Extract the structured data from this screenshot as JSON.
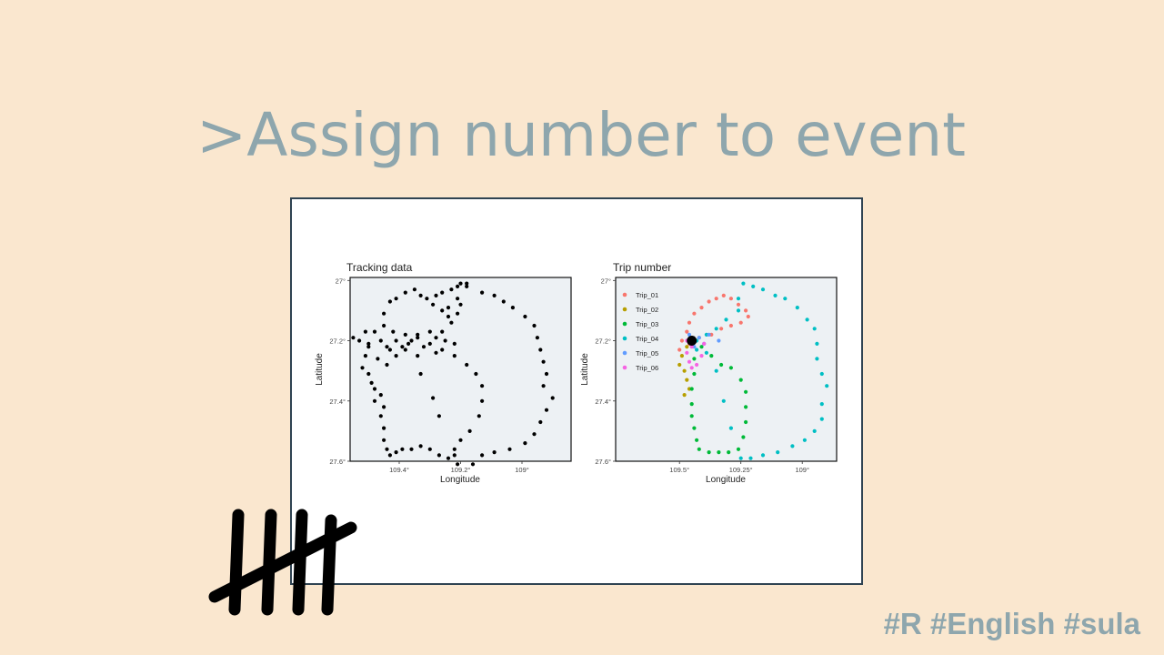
{
  "slide": {
    "title": ">Assign number to event",
    "hashtags": "#R #English #sula"
  },
  "chart_data": [
    {
      "type": "scatter",
      "title": "Tracking data",
      "xlabel": "Longitude",
      "ylabel": "Latitude",
      "x_ticks": [
        "109.4°",
        "109.2°",
        "109°"
      ],
      "y_ticks": [
        "27°",
        "27.2°",
        "27.4°",
        "27.6°"
      ],
      "xlim": [
        109.56,
        108.84
      ],
      "ylim": [
        27.6,
        26.99
      ],
      "grid": false,
      "point_color": "#000000",
      "panel_background": "#edf1f4",
      "series": [
        {
          "points": [
            [
              109.2,
              27.01
            ],
            [
              109.18,
              27.01
            ],
            [
              109.21,
              27.02
            ],
            [
              109.23,
              27.03
            ],
            [
              109.26,
              27.04
            ],
            [
              109.28,
              27.05
            ],
            [
              109.31,
              27.06
            ],
            [
              109.18,
              27.02
            ],
            [
              109.13,
              27.04
            ],
            [
              109.09,
              27.05
            ],
            [
              109.06,
              27.07
            ],
            [
              109.03,
              27.09
            ],
            [
              108.99,
              27.12
            ],
            [
              108.96,
              27.15
            ],
            [
              108.95,
              27.19
            ],
            [
              108.94,
              27.23
            ],
            [
              108.93,
              27.27
            ],
            [
              108.92,
              27.31
            ],
            [
              108.93,
              27.35
            ],
            [
              108.9,
              27.39
            ],
            [
              108.92,
              27.43
            ],
            [
              108.94,
              27.47
            ],
            [
              108.96,
              27.51
            ],
            [
              108.99,
              27.54
            ],
            [
              109.04,
              27.56
            ],
            [
              109.09,
              27.57
            ],
            [
              109.13,
              27.58
            ],
            [
              109.16,
              27.61
            ],
            [
              109.21,
              27.61
            ],
            [
              109.22,
              27.56
            ],
            [
              109.2,
              27.53
            ],
            [
              109.17,
              27.5
            ],
            [
              109.14,
              27.45
            ],
            [
              109.13,
              27.4
            ],
            [
              109.13,
              27.35
            ],
            [
              109.15,
              27.31
            ],
            [
              109.18,
              27.28
            ],
            [
              109.22,
              27.25
            ],
            [
              109.26,
              27.23
            ],
            [
              109.3,
              27.21
            ],
            [
              109.34,
              27.19
            ],
            [
              109.38,
              27.18
            ],
            [
              109.42,
              27.17
            ],
            [
              109.45,
              27.15
            ],
            [
              109.48,
              27.17
            ],
            [
              109.51,
              27.17
            ],
            [
              109.53,
              27.2
            ],
            [
              109.55,
              27.19
            ],
            [
              109.5,
              27.21
            ],
            [
              109.46,
              27.2
            ],
            [
              109.44,
              27.22
            ],
            [
              109.41,
              27.2
            ],
            [
              109.37,
              27.21
            ],
            [
              109.34,
              27.18
            ],
            [
              109.3,
              27.17
            ],
            [
              109.26,
              27.17
            ],
            [
              109.23,
              27.14
            ],
            [
              109.21,
              27.11
            ],
            [
              109.2,
              27.08
            ],
            [
              109.21,
              27.06
            ],
            [
              109.24,
              27.09
            ],
            [
              109.24,
              27.12
            ],
            [
              109.26,
              27.1
            ],
            [
              109.29,
              27.08
            ],
            [
              109.33,
              27.05
            ],
            [
              109.35,
              27.03
            ],
            [
              109.38,
              27.04
            ],
            [
              109.41,
              27.06
            ],
            [
              109.43,
              27.07
            ],
            [
              109.45,
              27.11
            ],
            [
              109.5,
              27.22
            ],
            [
              109.51,
              27.25
            ],
            [
              109.52,
              27.29
            ],
            [
              109.5,
              27.31
            ],
            [
              109.49,
              27.34
            ],
            [
              109.48,
              27.36
            ],
            [
              109.46,
              27.38
            ],
            [
              109.48,
              27.4
            ],
            [
              109.45,
              27.42
            ],
            [
              109.46,
              27.45
            ],
            [
              109.45,
              27.49
            ],
            [
              109.45,
              27.53
            ],
            [
              109.44,
              27.56
            ],
            [
              109.43,
              27.58
            ],
            [
              109.41,
              27.57
            ],
            [
              109.39,
              27.56
            ],
            [
              109.36,
              27.56
            ],
            [
              109.33,
              27.55
            ],
            [
              109.3,
              27.56
            ],
            [
              109.27,
              27.58
            ],
            [
              109.24,
              27.59
            ],
            [
              109.22,
              27.58
            ],
            [
              109.27,
              27.45
            ],
            [
              109.29,
              27.39
            ],
            [
              109.33,
              27.31
            ],
            [
              109.38,
              27.23
            ],
            [
              109.41,
              27.25
            ],
            [
              109.44,
              27.28
            ],
            [
              109.47,
              27.26
            ],
            [
              109.43,
              27.23
            ],
            [
              109.39,
              27.22
            ],
            [
              109.36,
              27.2
            ],
            [
              109.32,
              27.22
            ],
            [
              109.28,
              27.19
            ],
            [
              109.25,
              27.2
            ],
            [
              109.22,
              27.21
            ],
            [
              109.28,
              27.24
            ],
            [
              109.34,
              27.25
            ]
          ]
        }
      ]
    },
    {
      "type": "scatter",
      "title": "Trip number",
      "xlabel": "Longitude",
      "ylabel": "Latitude",
      "x_ticks": [
        "109.5°",
        "109.25°",
        "109°"
      ],
      "y_ticks": [
        "27°",
        "27.2°",
        "27.4°",
        "27.6°"
      ],
      "xlim": [
        109.76,
        108.86
      ],
      "ylim": [
        27.6,
        26.99
      ],
      "legend": "top-left",
      "grid": false,
      "panel_background": "#edf1f4",
      "highlight_point": {
        "x": 109.45,
        "y": 27.2,
        "color": "#000000"
      },
      "series": [
        {
          "name": "Trip_01",
          "color": "#f8766d",
          "points": [
            [
              109.49,
              27.2
            ],
            [
              109.47,
              27.17
            ],
            [
              109.46,
              27.14
            ],
            [
              109.44,
              27.11
            ],
            [
              109.41,
              27.09
            ],
            [
              109.38,
              27.07
            ],
            [
              109.35,
              27.06
            ],
            [
              109.32,
              27.05
            ],
            [
              109.29,
              27.06
            ],
            [
              109.26,
              27.08
            ],
            [
              109.23,
              27.1
            ],
            [
              109.22,
              27.12
            ],
            [
              109.25,
              27.14
            ],
            [
              109.29,
              27.15
            ],
            [
              109.33,
              27.16
            ],
            [
              109.37,
              27.18
            ],
            [
              109.42,
              27.19
            ],
            [
              109.46,
              27.21
            ],
            [
              109.5,
              27.23
            ]
          ]
        },
        {
          "name": "Trip_02",
          "color": "#b79f00",
          "points": [
            [
              109.47,
              27.22
            ],
            [
              109.49,
              27.25
            ],
            [
              109.5,
              27.28
            ],
            [
              109.48,
              27.3
            ],
            [
              109.47,
              27.33
            ],
            [
              109.46,
              27.36
            ],
            [
              109.48,
              27.38
            ]
          ]
        },
        {
          "name": "Trip_03",
          "color": "#00ba38",
          "points": [
            [
              109.44,
              27.26
            ],
            [
              109.44,
              27.31
            ],
            [
              109.45,
              27.36
            ],
            [
              109.45,
              27.41
            ],
            [
              109.45,
              27.45
            ],
            [
              109.44,
              27.49
            ],
            [
              109.43,
              27.53
            ],
            [
              109.42,
              27.56
            ],
            [
              109.38,
              27.57
            ],
            [
              109.34,
              27.57
            ],
            [
              109.3,
              27.57
            ],
            [
              109.26,
              27.56
            ],
            [
              109.24,
              27.52
            ],
            [
              109.23,
              27.47
            ],
            [
              109.23,
              27.42
            ],
            [
              109.23,
              27.37
            ],
            [
              109.25,
              27.33
            ],
            [
              109.29,
              27.29
            ],
            [
              109.33,
              27.28
            ],
            [
              109.37,
              27.25
            ],
            [
              109.41,
              27.22
            ]
          ]
        },
        {
          "name": "Trip_04",
          "color": "#00bfc4",
          "points": [
            [
              109.43,
              27.2
            ],
            [
              109.39,
              27.18
            ],
            [
              109.35,
              27.16
            ],
            [
              109.31,
              27.13
            ],
            [
              109.26,
              27.1
            ],
            [
              109.26,
              27.06
            ],
            [
              109.24,
              27.01
            ],
            [
              109.2,
              27.02
            ],
            [
              109.16,
              27.03
            ],
            [
              109.11,
              27.05
            ],
            [
              109.07,
              27.06
            ],
            [
              109.02,
              27.09
            ],
            [
              108.98,
              27.13
            ],
            [
              108.95,
              27.16
            ],
            [
              108.94,
              27.21
            ],
            [
              108.94,
              27.26
            ],
            [
              108.92,
              27.31
            ],
            [
              108.9,
              27.35
            ],
            [
              108.92,
              27.41
            ],
            [
              108.92,
              27.46
            ],
            [
              108.95,
              27.5
            ],
            [
              108.99,
              27.53
            ],
            [
              109.04,
              27.55
            ],
            [
              109.1,
              27.57
            ],
            [
              109.16,
              27.58
            ],
            [
              109.21,
              27.59
            ],
            [
              109.25,
              27.59
            ],
            [
              109.29,
              27.49
            ],
            [
              109.32,
              27.4
            ],
            [
              109.35,
              27.3
            ],
            [
              109.39,
              27.24
            ],
            [
              109.43,
              27.23
            ]
          ]
        },
        {
          "name": "Trip_05",
          "color": "#619cff",
          "points": [
            [
              109.46,
              27.18
            ],
            [
              109.42,
              27.19
            ],
            [
              109.38,
              27.18
            ],
            [
              109.34,
              27.2
            ],
            [
              109.4,
              27.21
            ],
            [
              109.44,
              27.22
            ]
          ]
        },
        {
          "name": "Trip_06",
          "color": "#f564e3",
          "points": [
            [
              109.45,
              27.22
            ],
            [
              109.47,
              27.24
            ],
            [
              109.46,
              27.27
            ],
            [
              109.45,
              27.29
            ],
            [
              109.43,
              27.28
            ],
            [
              109.41,
              27.25
            ],
            [
              109.4,
              27.21
            ],
            [
              109.47,
              27.2
            ]
          ]
        }
      ]
    }
  ]
}
